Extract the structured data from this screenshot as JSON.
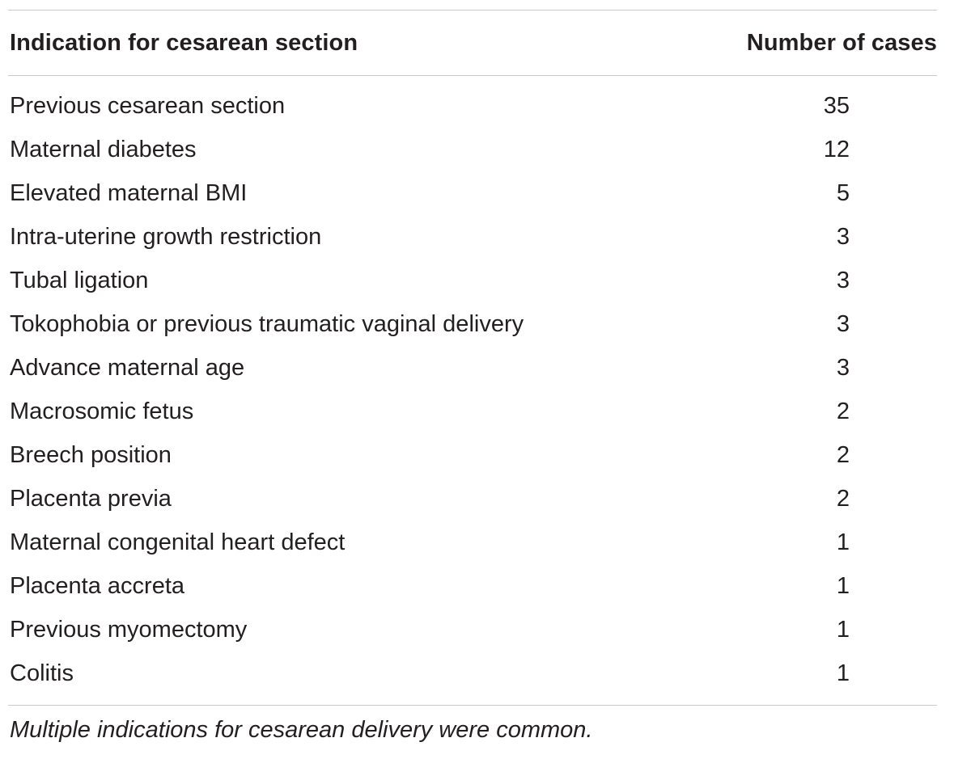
{
  "table": {
    "headers": {
      "indication": "Indication for cesarean section",
      "count": "Number of cases"
    },
    "rows": [
      {
        "indication": "Previous cesarean section",
        "count": "35"
      },
      {
        "indication": "Maternal diabetes",
        "count": "12"
      },
      {
        "indication": "Elevated maternal BMI",
        "count": "5"
      },
      {
        "indication": "Intra-uterine growth restriction",
        "count": "3"
      },
      {
        "indication": "Tubal ligation",
        "count": "3"
      },
      {
        "indication": "Tokophobia or previous traumatic vaginal delivery",
        "count": "3"
      },
      {
        "indication": "Advance maternal age",
        "count": "3"
      },
      {
        "indication": "Macrosomic fetus",
        "count": "2"
      },
      {
        "indication": "Breech position",
        "count": "2"
      },
      {
        "indication": "Placenta previa",
        "count": "2"
      },
      {
        "indication": "Maternal congenital heart defect",
        "count": "1"
      },
      {
        "indication": "Placenta accreta",
        "count": "1"
      },
      {
        "indication": "Previous myomectomy",
        "count": "1"
      },
      {
        "indication": "Colitis",
        "count": "1"
      }
    ],
    "footnote": "Multiple indications for cesarean delivery were common."
  }
}
